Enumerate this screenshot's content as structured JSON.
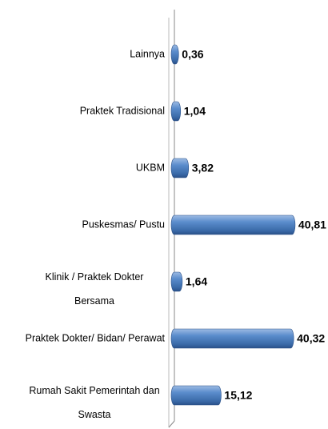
{
  "chart_data": {
    "type": "bar",
    "orientation": "horizontal",
    "categories": [
      "Lainnya",
      "Praktek Tradisional",
      "UKBM",
      "Puskesmas/ Pustu",
      "Klinik / Praktek Dokter Bersama",
      "Praktek Dokter/ Bidan/ Perawat",
      "Rumah Sakit Pemerintah dan Swasta"
    ],
    "values": [
      0.36,
      1.04,
      3.82,
      40.81,
      1.64,
      40.32,
      15.12
    ],
    "value_labels": [
      "0,36",
      "1,04",
      "3,82",
      "40,81",
      "1,64",
      "40,32",
      "15,12"
    ],
    "color": "#4f81bd"
  }
}
